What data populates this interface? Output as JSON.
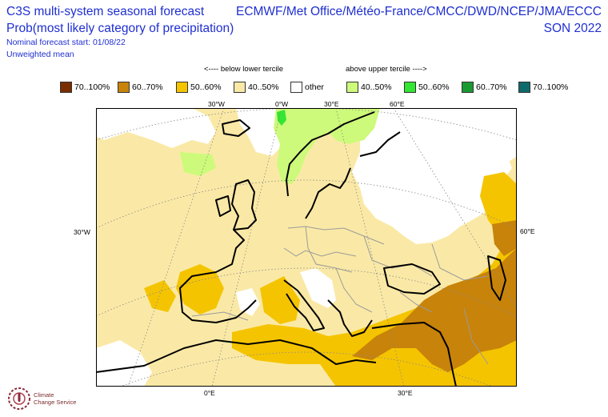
{
  "header": {
    "title_left": "C3S multi-system seasonal forecast",
    "subtitle_left": "Prob(most likely category of precipitation)",
    "nominal_start": "Nominal forecast start: 01/08/22",
    "mean_type": "Unweighted mean",
    "title_right": "ECMWF/Met Office/Météo-France/CMCC/DWD/NCEP/JMA/ECCC",
    "season": "SON 2022",
    "text_color": "#1f2fd0"
  },
  "legend": {
    "below_label": "<---- below lower tercile",
    "above_label": "above upper tercile ---->",
    "items": [
      {
        "label": "70..100%",
        "color": "#7a2e00"
      },
      {
        "label": "60..70%",
        "color": "#c8830a"
      },
      {
        "label": "50..60%",
        "color": "#f5c400"
      },
      {
        "label": "40..50%",
        "color": "#fae9a6"
      },
      {
        "label": "other",
        "color": "#ffffff"
      },
      {
        "label": "40..50%",
        "color": "#cdfa7a"
      },
      {
        "label": "50..60%",
        "color": "#33e633"
      },
      {
        "label": "60..70%",
        "color": "#1a9933"
      },
      {
        "label": "70..100%",
        "color": "#0f6b6b"
      }
    ]
  },
  "map": {
    "projection": "polar stereographic (Europe)",
    "tick_labels": {
      "top": [
        "30°W",
        "0°W",
        "30°E",
        "60°E"
      ],
      "left": [
        "30°W"
      ],
      "right": [
        "60°E"
      ],
      "bottom": [
        "0°E",
        "30°E"
      ]
    }
  },
  "logo": {
    "icon": "climate-change-service-logo",
    "line1": "Climate",
    "line2": "Change Service"
  }
}
